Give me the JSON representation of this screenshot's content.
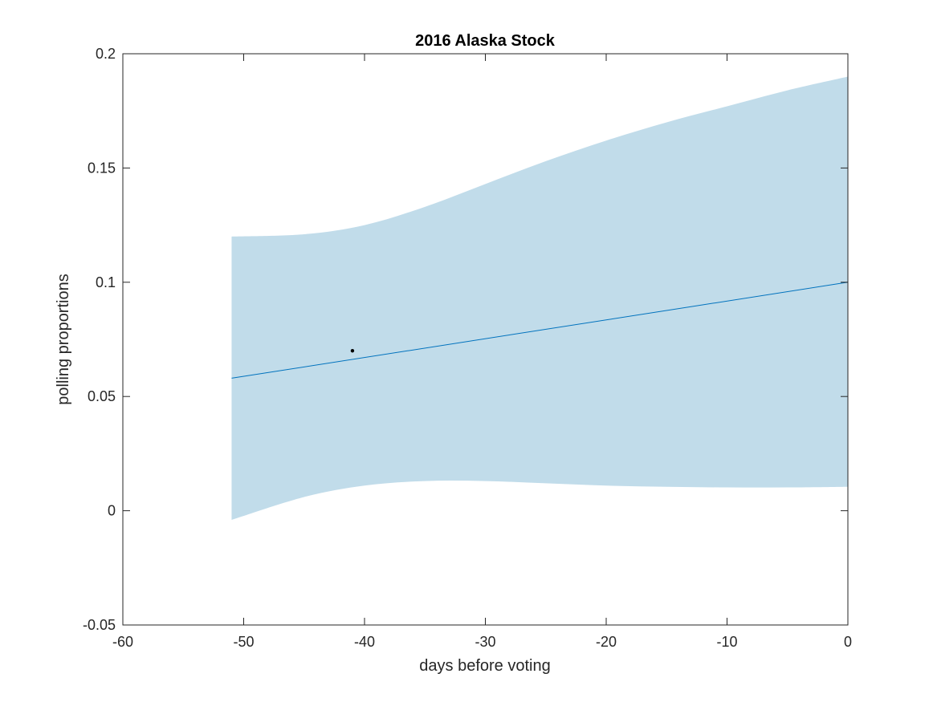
{
  "chart_data": {
    "type": "line",
    "title": "2016 Alaska Stock",
    "xlabel": "days before voting",
    "ylabel": "polling proportions",
    "xlim": [
      -60,
      0
    ],
    "ylim": [
      -0.05,
      0.2
    ],
    "xticks": [
      -60,
      -50,
      -40,
      -30,
      -20,
      -10,
      0
    ],
    "xtick_labels": [
      "-60",
      "-50",
      "-40",
      "-30",
      "-20",
      "-10",
      "0"
    ],
    "yticks": [
      -0.05,
      0,
      0.05,
      0.1,
      0.15,
      0.2
    ],
    "ytick_labels": [
      "-0.05",
      "0",
      "0.05",
      "0.1",
      "0.15",
      "0.2"
    ],
    "grid": false,
    "series": [
      {
        "kind": "line",
        "color": "#0072BD",
        "x": [
          -51,
          0
        ],
        "y": [
          0.058,
          0.1
        ]
      },
      {
        "kind": "band",
        "color": "#C1DCEA",
        "x": [
          -51,
          -45,
          -40,
          -35,
          -30,
          -25,
          -20,
          -15,
          -10,
          -5,
          0
        ],
        "upper": [
          0.12,
          0.121,
          0.125,
          0.133,
          0.143,
          0.153,
          0.162,
          0.17,
          0.177,
          0.184,
          0.19
        ],
        "lower": [
          -0.004,
          0.006,
          0.011,
          0.013,
          0.013,
          0.012,
          0.011,
          0.0105,
          0.0102,
          0.0102,
          0.0105
        ]
      },
      {
        "kind": "scatter",
        "color": "#000000",
        "x": [
          -41
        ],
        "y": [
          0.07
        ]
      }
    ]
  }
}
